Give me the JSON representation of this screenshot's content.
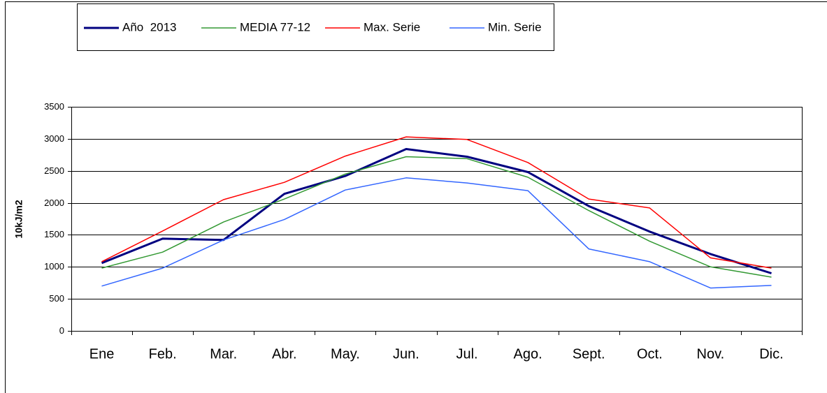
{
  "chart_data": {
    "type": "line",
    "y_label": "10kJ/m2",
    "categories": [
      "Ene",
      "Feb.",
      "Mar.",
      "Abr.",
      "May.",
      "Jun.",
      "Jul.",
      "Ago.",
      "Sept.",
      "Oct.",
      "Nov.",
      "Dic."
    ],
    "series": [
      {
        "name": "Año  2013",
        "color": "#000080",
        "values": [
          1060,
          1440,
          1420,
          2140,
          2420,
          2840,
          2720,
          2480,
          1950,
          1550,
          1200,
          900
        ]
      },
      {
        "name": "MEDIA 77-12",
        "color": "#339933",
        "values": [
          980,
          1230,
          1700,
          2060,
          2450,
          2720,
          2690,
          2400,
          1880,
          1400,
          1000,
          840
        ]
      },
      {
        "name": "Max. Serie",
        "color": "#ff0000",
        "values": [
          1080,
          1560,
          2050,
          2320,
          2730,
          3030,
          2990,
          2630,
          2060,
          1920,
          1140,
          980
        ]
      },
      {
        "name": "Min. Serie",
        "color": "#3366ff",
        "values": [
          700,
          980,
          1420,
          1740,
          2200,
          2390,
          2310,
          2190,
          1280,
          1080,
          670,
          710
        ]
      }
    ],
    "ylim": [
      0,
      3500
    ],
    "yticks": [
      0,
      500,
      1000,
      1500,
      2000,
      2500,
      3000,
      3500
    ],
    "grid": true
  }
}
